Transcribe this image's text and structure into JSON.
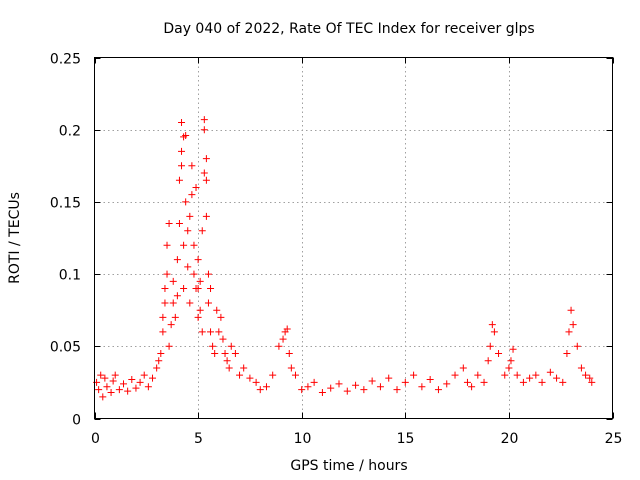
{
  "chart_data": {
    "type": "scatter",
    "title": "Day 040 of 2022, Rate Of TEC Index for receiver glps",
    "xlabel": "GPS time / hours",
    "ylabel": "ROTI / TECUs",
    "xlim": [
      0,
      25
    ],
    "ylim": [
      0,
      0.25
    ],
    "x_ticks": [
      0,
      5,
      10,
      15,
      20,
      25
    ],
    "x_tick_labels": [
      "0",
      "5",
      "10",
      "15",
      "20",
      "25"
    ],
    "y_ticks": [
      0,
      0.05,
      0.1,
      0.15,
      0.2,
      0.25
    ],
    "y_tick_labels": [
      "0",
      "0.05",
      "0.1",
      "0.15",
      "0.2",
      "0.25"
    ],
    "grid": true,
    "marker": "+",
    "marker_color": "#ff0000",
    "series": [
      {
        "name": "ROTI",
        "x": [
          0.1,
          0.2,
          0.3,
          0.4,
          0.5,
          0.6,
          0.8,
          0.9,
          1.0,
          1.2,
          1.4,
          1.6,
          1.8,
          2.0,
          2.2,
          2.4,
          2.6,
          2.8,
          3.0,
          3.1,
          3.2,
          3.3,
          3.3,
          3.4,
          3.4,
          3.5,
          3.5,
          3.6,
          3.6,
          3.7,
          3.8,
          3.8,
          3.9,
          4.0,
          4.0,
          4.1,
          4.1,
          4.2,
          4.2,
          4.2,
          4.3,
          4.3,
          4.3,
          4.4,
          4.4,
          4.5,
          4.5,
          4.6,
          4.6,
          4.7,
          4.7,
          4.8,
          4.8,
          4.9,
          4.9,
          5.0,
          5.0,
          5.0,
          5.1,
          5.1,
          5.2,
          5.2,
          5.3,
          5.3,
          5.3,
          5.4,
          5.4,
          5.4,
          5.5,
          5.5,
          5.6,
          5.6,
          5.7,
          5.8,
          5.9,
          6.0,
          6.1,
          6.2,
          6.3,
          6.4,
          6.5,
          6.6,
          6.8,
          7.0,
          7.2,
          7.5,
          7.8,
          8.0,
          8.3,
          8.6,
          8.9,
          9.1,
          9.2,
          9.3,
          9.4,
          9.5,
          9.7,
          10.0,
          10.3,
          10.6,
          11.0,
          11.4,
          11.8,
          12.2,
          12.6,
          13.0,
          13.4,
          13.8,
          14.2,
          14.6,
          15.0,
          15.4,
          15.8,
          16.2,
          16.6,
          17.0,
          17.4,
          17.8,
          18.0,
          18.2,
          18.5,
          18.8,
          19.0,
          19.1,
          19.2,
          19.3,
          19.5,
          19.8,
          20.0,
          20.1,
          20.2,
          20.4,
          20.7,
          21.0,
          21.3,
          21.6,
          22.0,
          22.3,
          22.6,
          22.8,
          22.9,
          23.0,
          23.1,
          23.3,
          23.5,
          23.7,
          23.9,
          24.0
        ],
        "y": [
          0.025,
          0.02,
          0.03,
          0.015,
          0.028,
          0.022,
          0.018,
          0.026,
          0.03,
          0.02,
          0.024,
          0.019,
          0.027,
          0.021,
          0.025,
          0.03,
          0.022,
          0.028,
          0.035,
          0.04,
          0.045,
          0.06,
          0.07,
          0.08,
          0.09,
          0.1,
          0.12,
          0.135,
          0.05,
          0.065,
          0.08,
          0.095,
          0.07,
          0.085,
          0.11,
          0.135,
          0.165,
          0.175,
          0.185,
          0.205,
          0.195,
          0.12,
          0.09,
          0.196,
          0.15,
          0.13,
          0.105,
          0.08,
          0.14,
          0.155,
          0.175,
          0.12,
          0.1,
          0.09,
          0.16,
          0.11,
          0.09,
          0.07,
          0.095,
          0.075,
          0.06,
          0.13,
          0.17,
          0.2,
          0.207,
          0.18,
          0.165,
          0.14,
          0.1,
          0.08,
          0.06,
          0.09,
          0.05,
          0.045,
          0.075,
          0.06,
          0.07,
          0.055,
          0.045,
          0.04,
          0.035,
          0.05,
          0.045,
          0.03,
          0.035,
          0.028,
          0.025,
          0.02,
          0.022,
          0.03,
          0.05,
          0.055,
          0.06,
          0.062,
          0.045,
          0.035,
          0.03,
          0.02,
          0.022,
          0.025,
          0.018,
          0.021,
          0.024,
          0.019,
          0.023,
          0.02,
          0.026,
          0.022,
          0.028,
          0.02,
          0.025,
          0.03,
          0.022,
          0.027,
          0.02,
          0.024,
          0.03,
          0.035,
          0.025,
          0.022,
          0.03,
          0.025,
          0.04,
          0.05,
          0.065,
          0.06,
          0.045,
          0.03,
          0.035,
          0.04,
          0.048,
          0.03,
          0.025,
          0.028,
          0.03,
          0.025,
          0.032,
          0.028,
          0.025,
          0.045,
          0.06,
          0.075,
          0.065,
          0.05,
          0.035,
          0.03,
          0.028,
          0.025
        ]
      }
    ]
  }
}
